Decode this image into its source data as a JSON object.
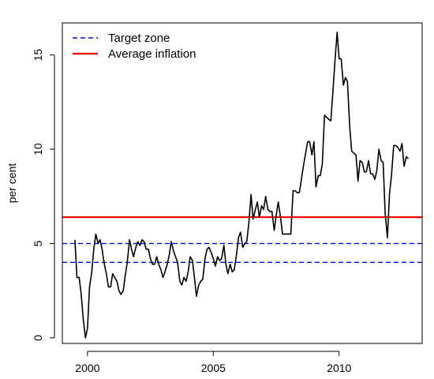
{
  "chart_data": {
    "type": "line",
    "title": "",
    "xlabel": "",
    "ylabel": "per cent",
    "xlim": [
      1999.0,
      2013.3
    ],
    "ylim": [
      -0.3,
      16.7
    ],
    "x_ticks": [
      2000,
      2005,
      2010
    ],
    "x_tick_labels": [
      "2000",
      "2005",
      "2010"
    ],
    "y_ticks": [
      0,
      5,
      10,
      15
    ],
    "y_tick_labels": [
      "0",
      "5",
      "10",
      "15"
    ],
    "grid": false,
    "legend_position": "top-left",
    "legend": [
      {
        "label": "Target zone",
        "style": "dashed",
        "color": "#0000ff"
      },
      {
        "label": "Average inflation",
        "style": "solid",
        "color": "#ff0000"
      }
    ],
    "reference_lines": [
      {
        "y": 4.0,
        "series": "Target zone",
        "color": "#0000ff",
        "style": "dashed"
      },
      {
        "y": 5.0,
        "series": "Target zone",
        "color": "#0000ff",
        "style": "dashed"
      },
      {
        "y": 6.4,
        "series": "Average inflation",
        "color": "#ff0000",
        "style": "solid"
      }
    ],
    "series": [
      {
        "color": "#000000",
        "points": [
          [
            1999.5,
            5.2
          ],
          [
            1999.58,
            3.2
          ],
          [
            1999.67,
            3.2
          ],
          [
            1999.75,
            2.3
          ],
          [
            1999.83,
            1.0
          ],
          [
            1999.92,
            0.0
          ],
          [
            2000.0,
            0.5
          ],
          [
            2000.08,
            2.7
          ],
          [
            2000.17,
            3.5
          ],
          [
            2000.25,
            4.7
          ],
          [
            2000.33,
            5.5
          ],
          [
            2000.42,
            5.0
          ],
          [
            2000.5,
            5.2
          ],
          [
            2000.58,
            4.7
          ],
          [
            2000.67,
            3.9
          ],
          [
            2000.75,
            3.4
          ],
          [
            2000.83,
            2.7
          ],
          [
            2000.92,
            2.7
          ],
          [
            2001.0,
            3.4
          ],
          [
            2001.08,
            3.2
          ],
          [
            2001.17,
            3.0
          ],
          [
            2001.25,
            2.5
          ],
          [
            2001.33,
            2.3
          ],
          [
            2001.42,
            2.5
          ],
          [
            2001.5,
            3.3
          ],
          [
            2001.58,
            4.0
          ],
          [
            2001.67,
            5.2
          ],
          [
            2001.75,
            4.7
          ],
          [
            2001.83,
            4.3
          ],
          [
            2001.92,
            4.8
          ],
          [
            2002.0,
            5.1
          ],
          [
            2002.08,
            4.9
          ],
          [
            2002.17,
            5.2
          ],
          [
            2002.25,
            5.1
          ],
          [
            2002.33,
            4.7
          ],
          [
            2002.42,
            4.7
          ],
          [
            2002.5,
            4.2
          ],
          [
            2002.58,
            3.9
          ],
          [
            2002.67,
            3.9
          ],
          [
            2002.75,
            4.3
          ],
          [
            2002.83,
            3.9
          ],
          [
            2002.92,
            3.6
          ],
          [
            2003.0,
            3.2
          ],
          [
            2003.08,
            3.5
          ],
          [
            2003.17,
            3.9
          ],
          [
            2003.25,
            4.4
          ],
          [
            2003.33,
            5.1
          ],
          [
            2003.42,
            4.6
          ],
          [
            2003.5,
            4.3
          ],
          [
            2003.58,
            4.0
          ],
          [
            2003.67,
            3.0
          ],
          [
            2003.75,
            2.8
          ],
          [
            2003.83,
            3.2
          ],
          [
            2003.92,
            3.0
          ],
          [
            2004.0,
            3.5
          ],
          [
            2004.08,
            4.3
          ],
          [
            2004.17,
            4.1
          ],
          [
            2004.25,
            3.2
          ],
          [
            2004.33,
            2.2
          ],
          [
            2004.42,
            2.8
          ],
          [
            2004.5,
            3.0
          ],
          [
            2004.58,
            3.1
          ],
          [
            2004.67,
            4.2
          ],
          [
            2004.75,
            4.7
          ],
          [
            2004.83,
            4.8
          ],
          [
            2004.92,
            4.5
          ],
          [
            2005.0,
            4.2
          ],
          [
            2005.08,
            3.8
          ],
          [
            2005.17,
            4.3
          ],
          [
            2005.25,
            4.1
          ],
          [
            2005.33,
            4.2
          ],
          [
            2005.42,
            4.9
          ],
          [
            2005.5,
            3.9
          ],
          [
            2005.58,
            3.4
          ],
          [
            2005.67,
            3.9
          ],
          [
            2005.75,
            3.5
          ],
          [
            2005.83,
            3.6
          ],
          [
            2005.92,
            4.4
          ],
          [
            2006.0,
            5.3
          ],
          [
            2006.08,
            5.6
          ],
          [
            2006.17,
            4.8
          ],
          [
            2006.25,
            5.0
          ],
          [
            2006.33,
            5.1
          ],
          [
            2006.42,
            6.2
          ],
          [
            2006.5,
            7.6
          ],
          [
            2006.58,
            6.3
          ],
          [
            2006.67,
            6.8
          ],
          [
            2006.75,
            7.2
          ],
          [
            2006.83,
            6.4
          ],
          [
            2006.92,
            7.0
          ],
          [
            2007.0,
            6.8
          ],
          [
            2007.08,
            7.5
          ],
          [
            2007.17,
            6.8
          ],
          [
            2007.25,
            6.7
          ],
          [
            2007.33,
            6.7
          ],
          [
            2007.42,
            5.7
          ],
          [
            2007.5,
            6.5
          ],
          [
            2007.58,
            7.2
          ],
          [
            2007.67,
            6.4
          ],
          [
            2007.75,
            5.5
          ],
          [
            2007.83,
            5.5
          ],
          [
            2007.92,
            5.5
          ],
          [
            2008.0,
            5.5
          ],
          [
            2008.08,
            5.5
          ],
          [
            2008.17,
            7.8
          ],
          [
            2008.25,
            7.8
          ],
          [
            2008.33,
            7.7
          ],
          [
            2008.42,
            7.7
          ],
          [
            2008.5,
            8.4
          ],
          [
            2008.58,
            9.1
          ],
          [
            2008.67,
            9.8
          ],
          [
            2008.75,
            10.4
          ],
          [
            2008.83,
            10.4
          ],
          [
            2008.92,
            9.7
          ],
          [
            2009.0,
            10.4
          ],
          [
            2009.08,
            8.0
          ],
          [
            2009.17,
            8.6
          ],
          [
            2009.25,
            8.6
          ],
          [
            2009.33,
            9.2
          ],
          [
            2009.42,
            11.8
          ],
          [
            2009.5,
            11.7
          ],
          [
            2009.58,
            11.6
          ],
          [
            2009.67,
            11.5
          ],
          [
            2009.75,
            13.0
          ],
          [
            2009.83,
            14.6
          ],
          [
            2009.92,
            16.2
          ],
          [
            2010.0,
            14.8
          ],
          [
            2010.08,
            14.8
          ],
          [
            2010.17,
            13.4
          ],
          [
            2010.25,
            13.8
          ],
          [
            2010.33,
            13.6
          ],
          [
            2010.42,
            11.2
          ],
          [
            2010.5,
            9.9
          ],
          [
            2010.58,
            9.8
          ],
          [
            2010.67,
            9.7
          ],
          [
            2010.75,
            8.3
          ],
          [
            2010.83,
            9.4
          ],
          [
            2010.92,
            9.3
          ],
          [
            2011.0,
            8.8
          ],
          [
            2011.08,
            8.8
          ],
          [
            2011.17,
            9.4
          ],
          [
            2011.25,
            8.7
          ],
          [
            2011.33,
            8.7
          ],
          [
            2011.42,
            8.4
          ],
          [
            2011.5,
            8.9
          ],
          [
            2011.58,
            10.0
          ],
          [
            2011.67,
            9.4
          ],
          [
            2011.75,
            9.3
          ],
          [
            2011.83,
            6.6
          ],
          [
            2011.92,
            5.3
          ],
          [
            2012.0,
            7.6
          ],
          [
            2012.08,
            8.6
          ],
          [
            2012.17,
            10.2
          ],
          [
            2012.25,
            10.2
          ],
          [
            2012.33,
            10.1
          ],
          [
            2012.42,
            9.9
          ],
          [
            2012.5,
            10.3
          ],
          [
            2012.58,
            9.1
          ],
          [
            2012.67,
            9.6
          ],
          [
            2012.75,
            9.5
          ]
        ]
      }
    ]
  }
}
